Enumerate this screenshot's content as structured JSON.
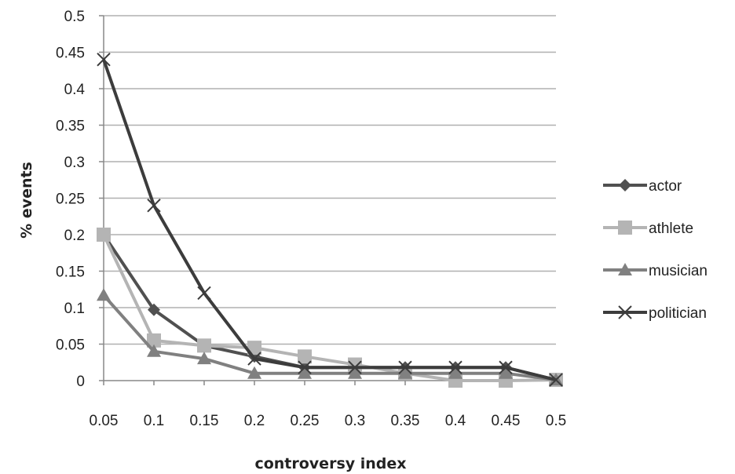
{
  "chart_data": {
    "type": "line",
    "title": "",
    "xlabel": "controversy index",
    "ylabel": "% events",
    "x": [
      0.05,
      0.1,
      0.15,
      0.2,
      0.25,
      0.3,
      0.35,
      0.4,
      0.45,
      0.5
    ],
    "x_tick_labels": [
      "0.05",
      "0.1",
      "0.15",
      "0.2",
      "0.25",
      "0.3",
      "0.35",
      "0.4",
      "0.45",
      "0.5"
    ],
    "ylim": [
      0,
      0.5
    ],
    "y_ticks": [
      0,
      0.05,
      0.1,
      0.15,
      0.2,
      0.25,
      0.3,
      0.35,
      0.4,
      0.45,
      0.5
    ],
    "y_tick_labels": [
      "0",
      "0.05",
      "0.1",
      "0.15",
      "0.2",
      "0.25",
      "0.3",
      "0.35",
      "0.4",
      "0.45",
      "0.5"
    ],
    "grid": "horizontal",
    "legend_position": "right",
    "series": [
      {
        "name": "actor",
        "marker": "diamond",
        "color": "#505050",
        "values": [
          0.2,
          0.097,
          0.048,
          0.033,
          0.018,
          0.018,
          0.018,
          0.018,
          0.018,
          0.001
        ]
      },
      {
        "name": "athlete",
        "marker": "square",
        "color": "#b4b4b4",
        "values": [
          0.2,
          0.055,
          0.048,
          0.045,
          0.033,
          0.022,
          0.01,
          0.0,
          0.0,
          0.001
        ]
      },
      {
        "name": "musician",
        "marker": "triangle",
        "color": "#808080",
        "values": [
          0.117,
          0.04,
          0.03,
          0.01,
          0.01,
          0.01,
          0.01,
          0.01,
          0.01,
          0.001
        ]
      },
      {
        "name": "politician",
        "marker": "x",
        "color": "#3c3c3c",
        "values": [
          0.44,
          0.24,
          0.12,
          0.03,
          0.018,
          0.018,
          0.018,
          0.018,
          0.018,
          0.001
        ]
      }
    ]
  }
}
